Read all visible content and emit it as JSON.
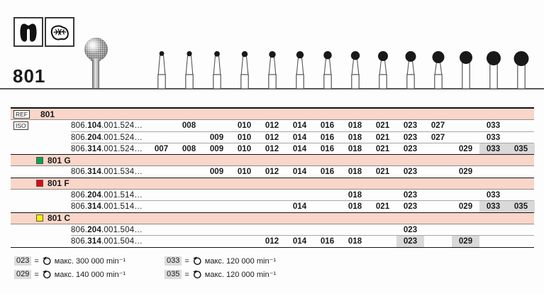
{
  "product": {
    "number": "801",
    "indication_icons": [
      "tooth-crown",
      "occlusal-surface"
    ]
  },
  "columns": [
    "007",
    "008",
    "009",
    "010",
    "012",
    "014",
    "016",
    "018",
    "021",
    "023",
    "027",
    "029",
    "033",
    "035"
  ],
  "bur_row": {
    "sizes": [
      "007",
      "008",
      "009",
      "010",
      "012",
      "014",
      "016",
      "018",
      "021",
      "023",
      "027",
      "029",
      "033",
      "035"
    ],
    "straight_shank_from": 29
  },
  "table": {
    "ref_label": "REF",
    "iso_label": "ISO",
    "ref_value": "801",
    "rows": [
      {
        "type": "code",
        "iso": true,
        "code_pre": "806.",
        "code_bold": "104",
        "code_post": ".001.524…",
        "sizes": [
          "008",
          "010",
          "012",
          "014",
          "016",
          "018",
          "021",
          "023",
          "027",
          "033"
        ],
        "highlight": [],
        "thick": false
      },
      {
        "type": "code",
        "code_pre": "806.",
        "code_bold": "204",
        "code_post": ".001.524…",
        "sizes": [
          "009",
          "010",
          "012",
          "014",
          "016",
          "018",
          "021",
          "023",
          "027",
          "033"
        ],
        "highlight": [],
        "thick": false
      },
      {
        "type": "code",
        "code_pre": "806.",
        "code_bold": "314",
        "code_post": ".001.524…",
        "sizes": [
          "007",
          "008",
          "009",
          "010",
          "012",
          "014",
          "016",
          "018",
          "021",
          "023",
          "029",
          "033",
          "035"
        ],
        "highlight": [
          "033",
          "035"
        ],
        "thick": true
      },
      {
        "type": "section",
        "square_color": "#00a651",
        "label": "801 G"
      },
      {
        "type": "code",
        "code_pre": "806.",
        "code_bold": "314",
        "code_post": ".001.534…",
        "sizes": [
          "009",
          "010",
          "012",
          "014",
          "016",
          "018",
          "021",
          "023",
          "029"
        ],
        "highlight": [],
        "thick": true
      },
      {
        "type": "section",
        "square_color": "#e30613",
        "label": "801 F"
      },
      {
        "type": "code",
        "code_pre": "806.",
        "code_bold": "204",
        "code_post": ".001.514…",
        "sizes": [
          "018",
          "023",
          "033"
        ],
        "highlight": [],
        "thick": false
      },
      {
        "type": "code",
        "code_pre": "806.",
        "code_bold": "314",
        "code_post": ".001.514…",
        "sizes": [
          "014",
          "018",
          "021",
          "023",
          "029",
          "033",
          "035"
        ],
        "highlight": [
          "033",
          "035"
        ],
        "thick": true
      },
      {
        "type": "section",
        "square_color": "#ffed00",
        "label": "801 C"
      },
      {
        "type": "code",
        "code_pre": "806.",
        "code_bold": "204",
        "code_post": ".001.504…",
        "sizes": [
          "023"
        ],
        "highlight": [],
        "thick": false
      },
      {
        "type": "code",
        "code_pre": "806.",
        "code_bold": "314",
        "code_post": ".001.504…",
        "sizes": [
          "012",
          "014",
          "016",
          "018",
          "023",
          "029"
        ],
        "highlight": [
          "023",
          "029"
        ],
        "thick": true
      }
    ]
  },
  "legend": {
    "items": [
      {
        "size": "023",
        "eq": "=",
        "text": "макс. 300 000 min⁻¹"
      },
      {
        "size": "029",
        "eq": "=",
        "text": "макс. 140 000 min⁻¹"
      },
      {
        "size": "033",
        "eq": "=",
        "text": "макс. 120 000 min⁻¹"
      },
      {
        "size": "035",
        "eq": "=",
        "text": "макс. 120 000 min⁻¹"
      }
    ]
  },
  "colors": {
    "row_pink": "#f9d6c9",
    "cell_highlight": "#d9d9d9",
    "green": "#00a651",
    "red": "#e30613",
    "yellow": "#ffed00"
  }
}
